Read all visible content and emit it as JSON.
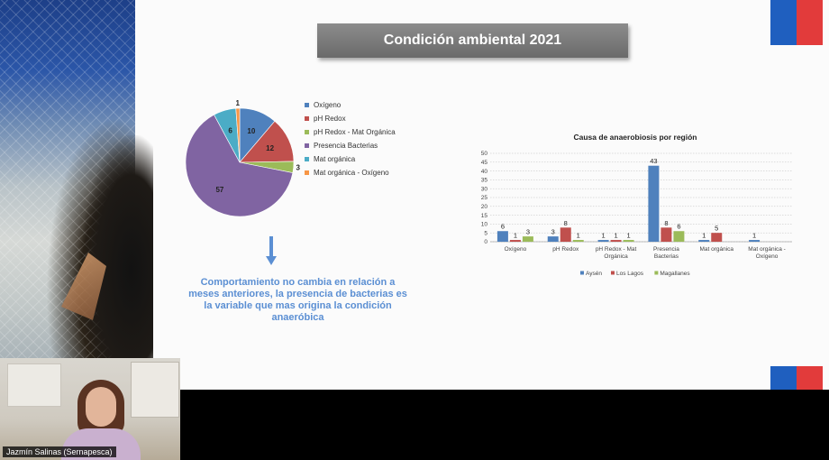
{
  "slide": {
    "title": "Condición ambiental 2021",
    "comment": "Comportamiento no cambia en relación a meses anteriores, la presencia de bacterias es la variable que mas origina la condición anaeróbica"
  },
  "pie": {
    "slices": [
      {
        "label": "Oxígeno",
        "value": 10,
        "color": "#4f81bd"
      },
      {
        "label": "pH Redox",
        "value": 12,
        "color": "#c0504d"
      },
      {
        "label": "pH Redox - Mat Orgánica",
        "value": 3,
        "color": "#9bbb59"
      },
      {
        "label": "Presencia Bacterias",
        "value": 57,
        "color": "#8064a2"
      },
      {
        "label": "Mat orgánica",
        "value": 6,
        "color": "#4bacc6"
      },
      {
        "label": "Mat orgánica - Oxígeno",
        "value": 1,
        "color": "#f79646"
      }
    ]
  },
  "chart_data": {
    "type": "bar",
    "title": "Causa de anaerobiosis por región",
    "categories": [
      "Oxígeno",
      "pH Redox",
      "pH Redox - Mat Orgánica",
      "Presencia Bacterias",
      "Mat orgánica",
      "Mat orgánica - Oxígeno"
    ],
    "category_lines": [
      [
        "Oxígeno"
      ],
      [
        "pH Redox"
      ],
      [
        "pH Redox - Mat",
        "Orgánica"
      ],
      [
        "Presencia",
        "Bacterias"
      ],
      [
        "Mat orgánica"
      ],
      [
        "Mat orgánica -",
        "Oxígeno"
      ]
    ],
    "series": [
      {
        "name": "Aysén",
        "color": "#4f81bd",
        "values": [
          6,
          3,
          1,
          43,
          1,
          1
        ]
      },
      {
        "name": "Los Lagos",
        "color": "#c0504d",
        "values": [
          1,
          8,
          1,
          8,
          5,
          null
        ]
      },
      {
        "name": "Magallanes",
        "color": "#9bbb59",
        "values": [
          3,
          1,
          1,
          6,
          null,
          null
        ]
      }
    ],
    "ylim": [
      0,
      50
    ],
    "yticks": [
      0,
      5,
      10,
      15,
      20,
      25,
      30,
      35,
      40,
      45,
      50
    ],
    "grid": true,
    "legend": "bottom"
  },
  "webcam": {
    "participant_name": "Jazmín Salinas (Sernapesca)"
  }
}
